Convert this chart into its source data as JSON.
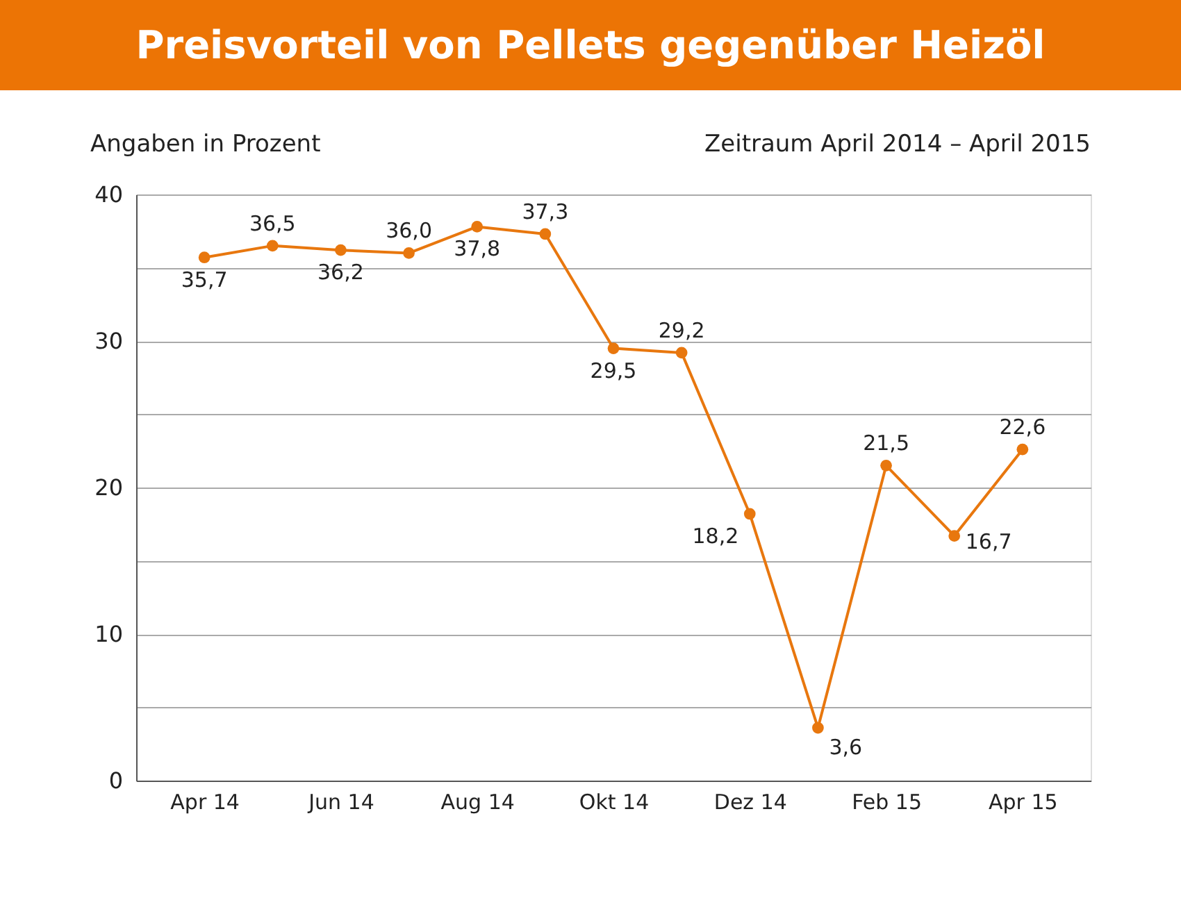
{
  "chart_data": {
    "type": "line",
    "title": "Preisvorteil von Pellets gegenüber Heizöl",
    "subtitle": "Zeitraum April 2014 – April 2015",
    "ylabel": "Angaben in Prozent",
    "categories": [
      "Apr 14",
      null,
      "Jun 14",
      null,
      "Aug 14",
      null,
      "Okt 14",
      null,
      "Dez 14",
      null,
      "Feb 15",
      null,
      "Apr 15"
    ],
    "values": [
      35.7,
      36.5,
      36.2,
      36.0,
      37.8,
      37.3,
      29.5,
      29.2,
      18.2,
      3.6,
      21.5,
      16.7,
      22.6
    ],
    "value_labels": [
      "35,7",
      "36,5",
      "36,2",
      "36,0",
      "37,8",
      "37,3",
      "29,5",
      "29,2",
      "18,2",
      "3,6",
      "21,5",
      "16,7",
      "22,6"
    ],
    "color": "#e8770e",
    "marker": "circle",
    "grid": "y",
    "ylim": [
      0,
      40
    ],
    "yticks": [
      0,
      {
        "value": 5,
        "label": null
      },
      10,
      {
        "value": 15,
        "label": null
      },
      20,
      {
        "value": 25,
        "label": null
      },
      30,
      {
        "value": 35,
        "label": null
      },
      40
    ]
  }
}
